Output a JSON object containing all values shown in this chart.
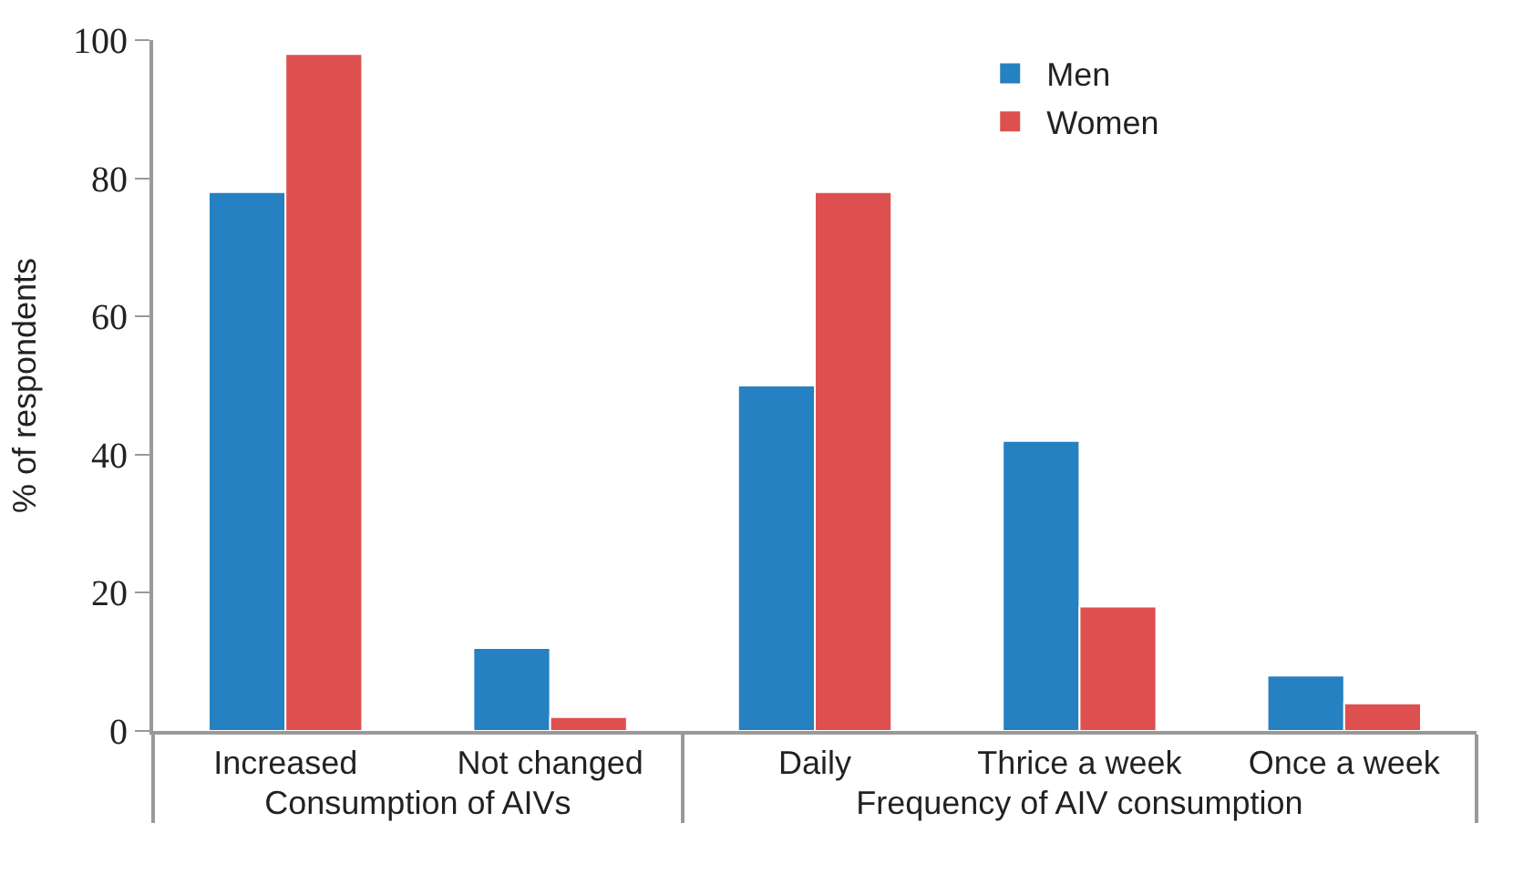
{
  "chart_data": {
    "type": "bar",
    "ylabel": "% of respondents",
    "categories": [
      "Increased",
      "Not changed",
      "Daily",
      "Thrice a week",
      "Once a week"
    ],
    "annotations": [
      "Consumption of AIVs",
      "Frequency of AIV consumption"
    ],
    "series": [
      {
        "name": "Men",
        "color": "#2581c1",
        "values": [
          78,
          12,
          50,
          42,
          8
        ]
      },
      {
        "name": "Women",
        "color": "#de5050",
        "values": [
          98,
          2,
          78,
          18,
          4
        ]
      }
    ],
    "ylim": [
      0,
      100
    ],
    "yticks": [
      0,
      20,
      40,
      60,
      80,
      100
    ],
    "legend": "top"
  }
}
